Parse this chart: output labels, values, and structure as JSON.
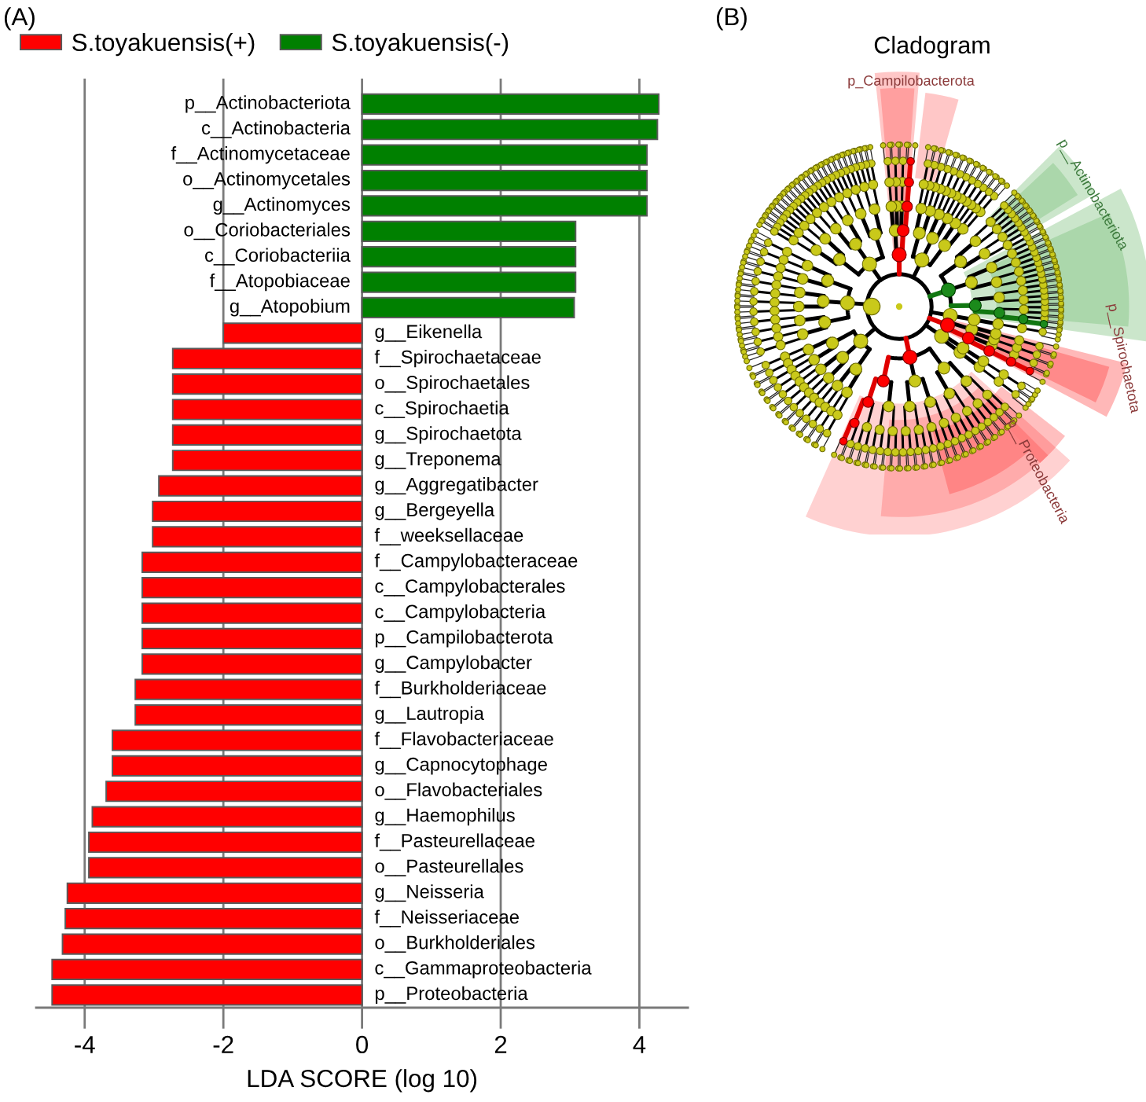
{
  "chart_data": [
    {
      "type": "bar",
      "orientation": "horizontal",
      "annotations": [
        "(A)"
      ],
      "xlabel": "LDA SCORE (log 10)",
      "categories": [
        "p__Actinobacteriota",
        "c__Actinobacteria",
        "f__Actinomycetaceae",
        "o__Actinomycetales",
        "g__Actinomyces",
        "o__Coriobacteriales",
        "c__Coriobacteriia",
        "f__Atopobiaceae",
        "g__Atopobium",
        "g__Eikenella",
        "f__Spirochaetaceae",
        "o__Spirochaetales",
        "c__Spirochaetia",
        "g__Spirochaetota",
        "g__Treponema",
        "g__Aggregatibacter",
        "g__Bergeyella",
        "f__weeksellaceae",
        "f__Campylobacteraceae",
        "c__Campylobacterales",
        "c__Campylobacteria",
        "p__Campilobacterota",
        "g__Campylobacter",
        "f__Burkholderiaceae",
        "g__Lautropia",
        "f__Flavobacteriaceae",
        "g__Capnocytophage",
        "o__Flavobacteriales",
        "g__Haemophilus",
        "f__Pasteurellaceae",
        "o__Pasteurellales",
        "g__Neisseria",
        "f__Neisseriaceae",
        "o__Burkholderiales",
        "c__Gammaproteobacteria",
        "p__Proteobacteria"
      ],
      "series": [
        {
          "name": "S.toyakuensis(+)",
          "color": "#ff0000",
          "values": [
            null,
            null,
            null,
            null,
            null,
            null,
            null,
            null,
            null,
            -2.0,
            -2.73,
            -2.73,
            -2.73,
            -2.73,
            -2.73,
            -2.93,
            -3.02,
            -3.02,
            -3.17,
            -3.17,
            -3.17,
            -3.17,
            -3.17,
            -3.27,
            -3.27,
            -3.6,
            -3.6,
            -3.69,
            -3.89,
            -3.94,
            -3.94,
            -4.25,
            -4.28,
            -4.32,
            -4.47,
            -4.47
          ]
        },
        {
          "name": "S.toyakuensis(-)",
          "color": "#008000",
          "values": [
            4.28,
            4.26,
            4.11,
            4.11,
            4.11,
            3.08,
            3.08,
            3.08,
            3.06,
            null,
            null,
            null,
            null,
            null,
            null,
            null,
            null,
            null,
            null,
            null,
            null,
            null,
            null,
            null,
            null,
            null,
            null,
            null,
            null,
            null,
            null,
            null,
            null,
            null,
            null,
            null
          ]
        }
      ],
      "xlim": [
        -4.7,
        4.7
      ],
      "xticks": [
        -4,
        -2,
        0,
        2,
        4
      ],
      "grid": "x",
      "legend": "top left"
    },
    {
      "type": "other",
      "title": "Cladogram",
      "annotations": [
        "(B)",
        "p_Campilobacterota",
        "p__Actinobacteriota",
        "p__Spirochaetota",
        "p__Proteobacteria"
      ]
    }
  ]
}
